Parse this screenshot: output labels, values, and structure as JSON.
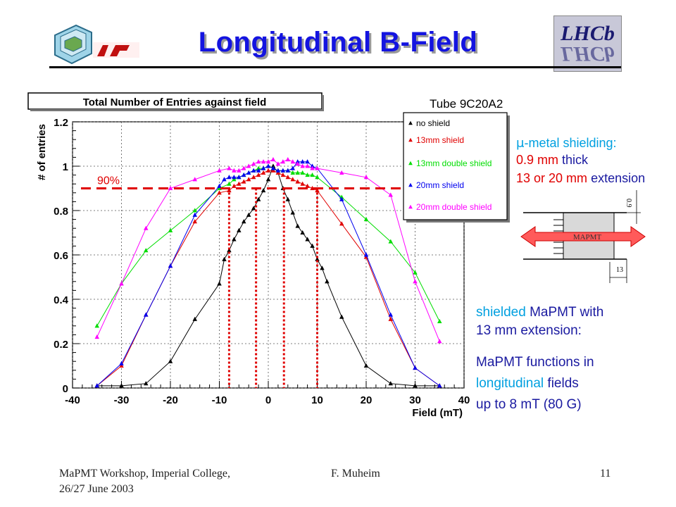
{
  "slide": {
    "title": "Longitudinal B-Field",
    "colors": {
      "title": "#1414e0",
      "cyan": "#00a0e0",
      "navy": "#1a1aa0",
      "red": "#e00000"
    }
  },
  "chart_data": {
    "type": "line",
    "title": "Total Number of Entries against field",
    "tube_label": "Tube 9C20A2",
    "xlabel": "Field (mT)",
    "ylabel": "# of entries",
    "xlim": [
      -40,
      40
    ],
    "ylim": [
      0,
      1.2
    ],
    "x_ticks": [
      "-40",
      "-30",
      "-20",
      "-10",
      "0",
      "10",
      "20",
      "30",
      "40"
    ],
    "y_ticks": [
      "0",
      "0.2",
      "0.4",
      "0.6",
      "0.8",
      "1",
      "1.2"
    ],
    "grid": true,
    "legend_position": "top-right",
    "series": [
      {
        "name": "no shield",
        "color": "#000000",
        "points": [
          [
            -35,
            0.01
          ],
          [
            -30,
            0.01
          ],
          [
            -25,
            0.02
          ],
          [
            -20,
            0.12
          ],
          [
            -15,
            0.31
          ],
          [
            -10,
            0.47
          ],
          [
            -9,
            0.58
          ],
          [
            -8,
            0.62
          ],
          [
            -7,
            0.67
          ],
          [
            -6,
            0.71
          ],
          [
            -5,
            0.75
          ],
          [
            -4,
            0.78
          ],
          [
            -3,
            0.81
          ],
          [
            -2,
            0.85
          ],
          [
            -1,
            0.89
          ],
          [
            0,
            0.94
          ],
          [
            1,
            1.0
          ],
          [
            2,
            0.97
          ],
          [
            3,
            0.9
          ],
          [
            4,
            0.85
          ],
          [
            5,
            0.79
          ],
          [
            6,
            0.73
          ],
          [
            7,
            0.7
          ],
          [
            8,
            0.67
          ],
          [
            9,
            0.64
          ],
          [
            10,
            0.58
          ],
          [
            11,
            0.54
          ],
          [
            12,
            0.48
          ],
          [
            15,
            0.32
          ],
          [
            20,
            0.1
          ],
          [
            25,
            0.02
          ],
          [
            30,
            0.01
          ],
          [
            35,
            0.01
          ]
        ]
      },
      {
        "name": "13mm shield",
        "color": "#e00000",
        "points": [
          [
            -35,
            0.01
          ],
          [
            -30,
            0.1
          ],
          [
            -25,
            0.33
          ],
          [
            -20,
            0.55
          ],
          [
            -15,
            0.75
          ],
          [
            -10,
            0.88
          ],
          [
            -8,
            0.89
          ],
          [
            -7,
            0.91
          ],
          [
            -6,
            0.92
          ],
          [
            -5,
            0.93
          ],
          [
            -4,
            0.94
          ],
          [
            -3,
            0.95
          ],
          [
            -2,
            0.96
          ],
          [
            -1,
            0.97
          ],
          [
            0,
            0.98
          ],
          [
            1,
            0.98
          ],
          [
            2,
            0.97
          ],
          [
            3,
            0.96
          ],
          [
            4,
            0.95
          ],
          [
            5,
            0.94
          ],
          [
            6,
            0.93
          ],
          [
            7,
            0.92
          ],
          [
            8,
            0.91
          ],
          [
            9,
            0.9
          ],
          [
            10,
            0.89
          ],
          [
            15,
            0.74
          ],
          [
            20,
            0.59
          ],
          [
            25,
            0.31
          ],
          [
            30,
            0.09
          ],
          [
            35,
            0.01
          ]
        ]
      },
      {
        "name": "13mm double shield",
        "color": "#00dd00",
        "points": [
          [
            -35,
            0.28
          ],
          [
            -30,
            0.47
          ],
          [
            -25,
            0.62
          ],
          [
            -20,
            0.71
          ],
          [
            -15,
            0.8
          ],
          [
            -10,
            0.9
          ],
          [
            -8,
            0.92
          ],
          [
            -7,
            0.94
          ],
          [
            -6,
            0.95
          ],
          [
            -5,
            0.96
          ],
          [
            -4,
            0.97
          ],
          [
            -3,
            0.98
          ],
          [
            -2,
            0.99
          ],
          [
            -1,
            0.99
          ],
          [
            0,
            1.0
          ],
          [
            1,
            0.99
          ],
          [
            2,
            0.98
          ],
          [
            3,
            0.98
          ],
          [
            4,
            0.98
          ],
          [
            5,
            0.97
          ],
          [
            6,
            0.97
          ],
          [
            7,
            0.97
          ],
          [
            8,
            0.96
          ],
          [
            9,
            0.96
          ],
          [
            10,
            0.95
          ],
          [
            15,
            0.86
          ],
          [
            20,
            0.76
          ],
          [
            25,
            0.66
          ],
          [
            30,
            0.52
          ],
          [
            35,
            0.3
          ]
        ]
      },
      {
        "name": "20mm shield",
        "color": "#0000ee",
        "points": [
          [
            -35,
            0.01
          ],
          [
            -30,
            0.11
          ],
          [
            -25,
            0.33
          ],
          [
            -20,
            0.55
          ],
          [
            -15,
            0.78
          ],
          [
            -10,
            0.91
          ],
          [
            -9,
            0.94
          ],
          [
            -8,
            0.95
          ],
          [
            -7,
            0.95
          ],
          [
            -6,
            0.95
          ],
          [
            -5,
            0.96
          ],
          [
            -4,
            0.97
          ],
          [
            -3,
            0.98
          ],
          [
            -2,
            0.98
          ],
          [
            -1,
            0.99
          ],
          [
            0,
            1.0
          ],
          [
            1,
            0.99
          ],
          [
            2,
            0.98
          ],
          [
            3,
            0.98
          ],
          [
            4,
            0.98
          ],
          [
            5,
            0.99
          ],
          [
            6,
            1.02
          ],
          [
            7,
            1.02
          ],
          [
            8,
            1.02
          ],
          [
            9,
            1.0
          ],
          [
            10,
            0.99
          ],
          [
            15,
            0.85
          ],
          [
            20,
            0.6
          ],
          [
            25,
            0.33
          ],
          [
            30,
            0.09
          ],
          [
            35,
            0.01
          ]
        ]
      },
      {
        "name": "20mm double shield",
        "color": "#ff00ff",
        "points": [
          [
            -35,
            0.23
          ],
          [
            -30,
            0.47
          ],
          [
            -25,
            0.72
          ],
          [
            -20,
            0.9
          ],
          [
            -15,
            0.94
          ],
          [
            -10,
            0.98
          ],
          [
            -8,
            0.99
          ],
          [
            -7,
            0.98
          ],
          [
            -6,
            0.98
          ],
          [
            -5,
            0.99
          ],
          [
            -4,
            1.0
          ],
          [
            -3,
            1.01
          ],
          [
            -2,
            1.02
          ],
          [
            -1,
            1.02
          ],
          [
            0,
            1.02
          ],
          [
            1,
            1.03
          ],
          [
            2,
            1.01
          ],
          [
            3,
            1.02
          ],
          [
            4,
            1.03
          ],
          [
            5,
            1.02
          ],
          [
            6,
            1.01
          ],
          [
            7,
            1.0
          ],
          [
            8,
            1.0
          ],
          [
            9,
            0.99
          ],
          [
            10,
            0.99
          ],
          [
            15,
            0.97
          ],
          [
            20,
            0.95
          ],
          [
            25,
            0.87
          ],
          [
            30,
            0.48
          ],
          [
            35,
            0.21
          ]
        ]
      }
    ],
    "reference_line": {
      "label": "90%",
      "y": 0.9,
      "color": "#e00000"
    },
    "vertical_markers": [
      -8,
      -2.5,
      3.2,
      10
    ]
  },
  "side_text": {
    "mu": "μ",
    "shield_header": "-metal shielding:",
    "thick_num": "0.9 mm",
    "thick_word": "thick",
    "ext_num": "13 or 20 mm",
    "ext_word": "extension",
    "shielded_word": "shielded",
    "shielded_rest": "MaPMT with",
    "shielded_line2": "13 mm extension:",
    "func_line1": "MaPMT functions in",
    "func_longitudinal": "longitudinal",
    "func_fields": "fields",
    "func_line3": "up to 8 mT (80 G)"
  },
  "diagram": {
    "dim_thick": "0.9",
    "dim_ext": "13",
    "tube_label": "MAPMT"
  },
  "footer": {
    "left_line1": "MaPMT Workshop, Imperial College,",
    "left_line2": "26/27 June 2003",
    "center": "F. Muheim",
    "page": "11"
  },
  "logo_right": "LHCb"
}
